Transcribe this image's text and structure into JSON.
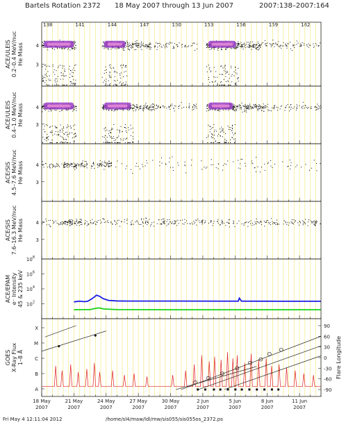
{
  "header": {
    "title": "Bartels Rotation 2372",
    "date_range": "18 May 2007 through 13 Jun 2007",
    "doy_range": "2007:138–2007:164"
  },
  "footer": {
    "timestamp": "Fri May  4 12:11:04 2012",
    "path": "/home/sl4/maw/ldl/mw/sis055/sis055os_2372.ps"
  },
  "colors": {
    "grid_yellow": "#f0e66a",
    "scatter": "#000000",
    "density_purple": "#9a3ec8",
    "density_pink": "#e58ad6",
    "epam_high": "#1a1ae6",
    "epam_low": "#14d214",
    "goes_flux": "#e02020",
    "flare_line": "#000000"
  },
  "chart_data": {
    "type": "multi-panel time series",
    "bartels_rotation": 2372,
    "doy_range": [
      138,
      164
    ],
    "top_doy_ticks": [
      "138",
      "141",
      "144",
      "147",
      "150",
      "153",
      "156",
      "159",
      "162"
    ],
    "date_ticks": [
      {
        "day": "18 May",
        "year": "2007"
      },
      {
        "day": "21 May",
        "year": "2007"
      },
      {
        "day": "24 May",
        "year": "2007"
      },
      {
        "day": "27 May",
        "year": "2007"
      },
      {
        "day": "30 May",
        "year": "2007"
      },
      {
        "day": "2 Jun",
        "year": "2007"
      },
      {
        "day": "5 Jun",
        "year": "2007"
      },
      {
        "day": "8 Jun",
        "year": "2007"
      },
      {
        "day": "11 Jun",
        "year": "2007"
      }
    ],
    "panels": [
      {
        "id": "uleis-low",
        "instrument": "ACE/ULEIS",
        "energy": "0.2–0.4 MeV/nuc",
        "quantity": "He Mass",
        "type": "scatter",
        "yticks": [
          "4",
          "3"
        ],
        "activity": [
          {
            "start": 138.0,
            "end": 141.2,
            "level": "high"
          },
          {
            "start": 143.6,
            "end": 146.0,
            "level": "high"
          },
          {
            "start": 146.0,
            "end": 148.0,
            "level": "medium"
          },
          {
            "start": 148.0,
            "end": 152.6,
            "level": "low"
          },
          {
            "start": 153.3,
            "end": 156.3,
            "level": "high"
          },
          {
            "start": 156.3,
            "end": 158.6,
            "level": "medium"
          },
          {
            "start": 158.6,
            "end": 164.0,
            "level": "low"
          }
        ]
      },
      {
        "id": "uleis-high",
        "instrument": "ACE/ULEIS",
        "energy": "0.4–1.0 MeV/nuc",
        "quantity": "He Mass",
        "type": "scatter",
        "yticks": [
          "4",
          "3"
        ],
        "activity": [
          {
            "start": 138.0,
            "end": 141.2,
            "level": "high"
          },
          {
            "start": 143.6,
            "end": 146.5,
            "level": "high"
          },
          {
            "start": 146.5,
            "end": 148.5,
            "level": "medium"
          },
          {
            "start": 148.5,
            "end": 152.6,
            "level": "low"
          },
          {
            "start": 153.3,
            "end": 156.0,
            "level": "high"
          },
          {
            "start": 156.0,
            "end": 159.0,
            "level": "medium"
          },
          {
            "start": 159.0,
            "end": 164.0,
            "level": "low"
          }
        ]
      },
      {
        "id": "sis-low",
        "instrument": "ACE/SIS",
        "energy": "4.5–7.6 MeV/nuc",
        "quantity": "He Mass",
        "type": "scatter",
        "yticks": [
          "4",
          "3"
        ],
        "activity": [
          {
            "start": 138.0,
            "end": 140.0,
            "level": "low"
          },
          {
            "start": 140.0,
            "end": 142.2,
            "level": "medium"
          },
          {
            "start": 142.2,
            "end": 143.2,
            "level": "low"
          },
          {
            "start": 143.2,
            "end": 144.5,
            "level": "medium"
          },
          {
            "start": 144.5,
            "end": 164.0,
            "level": "sparse"
          }
        ]
      },
      {
        "id": "sis-high",
        "instrument": "ACE/SIS",
        "energy": "7.6–16.3 MeV/nuc",
        "quantity": "He Mass",
        "type": "scatter",
        "yticks": [
          "4",
          "3"
        ],
        "activity": [
          {
            "start": 138.0,
            "end": 140.0,
            "level": "low"
          },
          {
            "start": 140.0,
            "end": 141.8,
            "level": "medium"
          },
          {
            "start": 141.8,
            "end": 164.0,
            "level": "low"
          }
        ]
      },
      {
        "id": "epam",
        "instrument": "ACE/EPAM",
        "quantity": "e⁻ Intensity",
        "energy": "45 & 235 keV",
        "type": "line",
        "log_scale": true,
        "ylim_log10": [
          0,
          8
        ],
        "yticks": [
          {
            "base": "10",
            "exp": "8"
          },
          {
            "base": "10",
            "exp": "6"
          },
          {
            "base": "10",
            "exp": "4"
          },
          {
            "base": "10",
            "exp": "2"
          }
        ],
        "series": [
          {
            "id": "high-channel",
            "color": "#1a1ae6",
            "x": [
              141.0,
              141.5,
              142.0,
              142.3,
              142.6,
              142.9,
              143.1,
              143.4,
              143.7,
              144.2,
              145.0,
              146.0,
              150.0,
              155.0,
              156.3,
              156.4,
              156.6,
              160.0,
              164.0
            ],
            "y": [
              2.25,
              2.35,
              2.28,
              2.35,
              2.6,
              2.9,
              3.15,
              3.0,
              2.7,
              2.45,
              2.38,
              2.36,
              2.36,
              2.35,
              2.35,
              2.75,
              2.35,
              2.34,
              2.34
            ]
          },
          {
            "id": "low-channel",
            "color": "#14d214",
            "x": [
              141.0,
              142.5,
              142.9,
              143.3,
              143.8,
              145.0,
              150.0,
              155.0,
              164.0
            ],
            "y": [
              1.2,
              1.22,
              1.35,
              1.45,
              1.3,
              1.22,
              1.2,
              1.2,
              1.2
            ]
          }
        ]
      },
      {
        "id": "goes",
        "instrument": "GOES",
        "quantity": "X-Ray Flux",
        "band": "1–8 Å",
        "right_axis_label": "Flare Longitude",
        "type": "line",
        "yticks_left": [
          "X",
          "M",
          "C",
          "B",
          "A"
        ],
        "yticks_right": [
          "90",
          "60",
          "30",
          "0",
          "-30",
          "-60",
          "-90"
        ],
        "flux_baseline_class": "A",
        "flux_spikes": [
          {
            "x": 139.3,
            "y": 1.5
          },
          {
            "x": 139.9,
            "y": 1.2
          },
          {
            "x": 140.7,
            "y": 1.6
          },
          {
            "x": 141.4,
            "y": 1.1
          },
          {
            "x": 142.2,
            "y": 1.3
          },
          {
            "x": 142.9,
            "y": 1.7
          },
          {
            "x": 143.4,
            "y": 1.1
          },
          {
            "x": 144.6,
            "y": 1.2
          },
          {
            "x": 145.7,
            "y": 0.9
          },
          {
            "x": 146.6,
            "y": 1.0
          },
          {
            "x": 147.8,
            "y": 0.8
          },
          {
            "x": 150.2,
            "y": 0.9
          },
          {
            "x": 151.4,
            "y": 1.2
          },
          {
            "x": 152.2,
            "y": 1.6
          },
          {
            "x": 152.9,
            "y": 2.2
          },
          {
            "x": 153.6,
            "y": 1.8
          },
          {
            "x": 154.1,
            "y": 2.1
          },
          {
            "x": 154.7,
            "y": 1.9
          },
          {
            "x": 155.3,
            "y": 2.4
          },
          {
            "x": 155.8,
            "y": 2.0
          },
          {
            "x": 156.2,
            "y": 2.2
          },
          {
            "x": 156.9,
            "y": 1.7
          },
          {
            "x": 157.5,
            "y": 2.3
          },
          {
            "x": 158.2,
            "y": 1.9
          },
          {
            "x": 158.9,
            "y": 2.0
          },
          {
            "x": 159.4,
            "y": 1.5
          },
          {
            "x": 160.1,
            "y": 1.6
          },
          {
            "x": 160.8,
            "y": 1.4
          },
          {
            "x": 161.6,
            "y": 1.2
          },
          {
            "x": 162.4,
            "y": 1.0
          },
          {
            "x": 163.3,
            "y": 0.9
          }
        ],
        "flare_tracks": [
          {
            "x": [
              138.3,
              141.2
            ],
            "lon": [
              58,
              90
            ]
          },
          {
            "x": [
              138.0,
              144.0
            ],
            "lon": [
              18,
              75
            ]
          },
          {
            "x": [
              151.0,
              164.0
            ],
            "lon": [
              -90,
              60
            ]
          },
          {
            "x": [
              152.6,
              164.0
            ],
            "lon": [
              -90,
              33
            ]
          },
          {
            "x": [
              155.0,
              164.0
            ],
            "lon": [
              -90,
              5
            ]
          },
          {
            "x": [
              150.5,
              158.0
            ],
            "lon": [
              -90,
              -25
            ]
          }
        ],
        "flare_events": [
          {
            "x": 139.6,
            "lon": 32,
            "symbol": "diamond"
          },
          {
            "x": 143.0,
            "lon": 62,
            "symbol": "diamond"
          },
          {
            "x": 152.3,
            "lon": -70,
            "symbol": "circle"
          },
          {
            "x": 153.5,
            "lon": -58,
            "symbol": "circle"
          },
          {
            "x": 154.8,
            "lon": -45,
            "symbol": "circle"
          },
          {
            "x": 156.2,
            "lon": -30,
            "symbol": "circle"
          },
          {
            "x": 157.4,
            "lon": -15,
            "symbol": "circle"
          },
          {
            "x": 158.4,
            "lon": -5,
            "symbol": "circle"
          },
          {
            "x": 159.2,
            "lon": 10,
            "symbol": "circle"
          },
          {
            "x": 160.3,
            "lon": 22,
            "symbol": "circle"
          }
        ],
        "limb_events_x": [
          152.5,
          153.2,
          154.0,
          154.6,
          155.3,
          156.0,
          156.6,
          157.3,
          158.0,
          158.7,
          159.4,
          160.0
        ]
      }
    ]
  }
}
